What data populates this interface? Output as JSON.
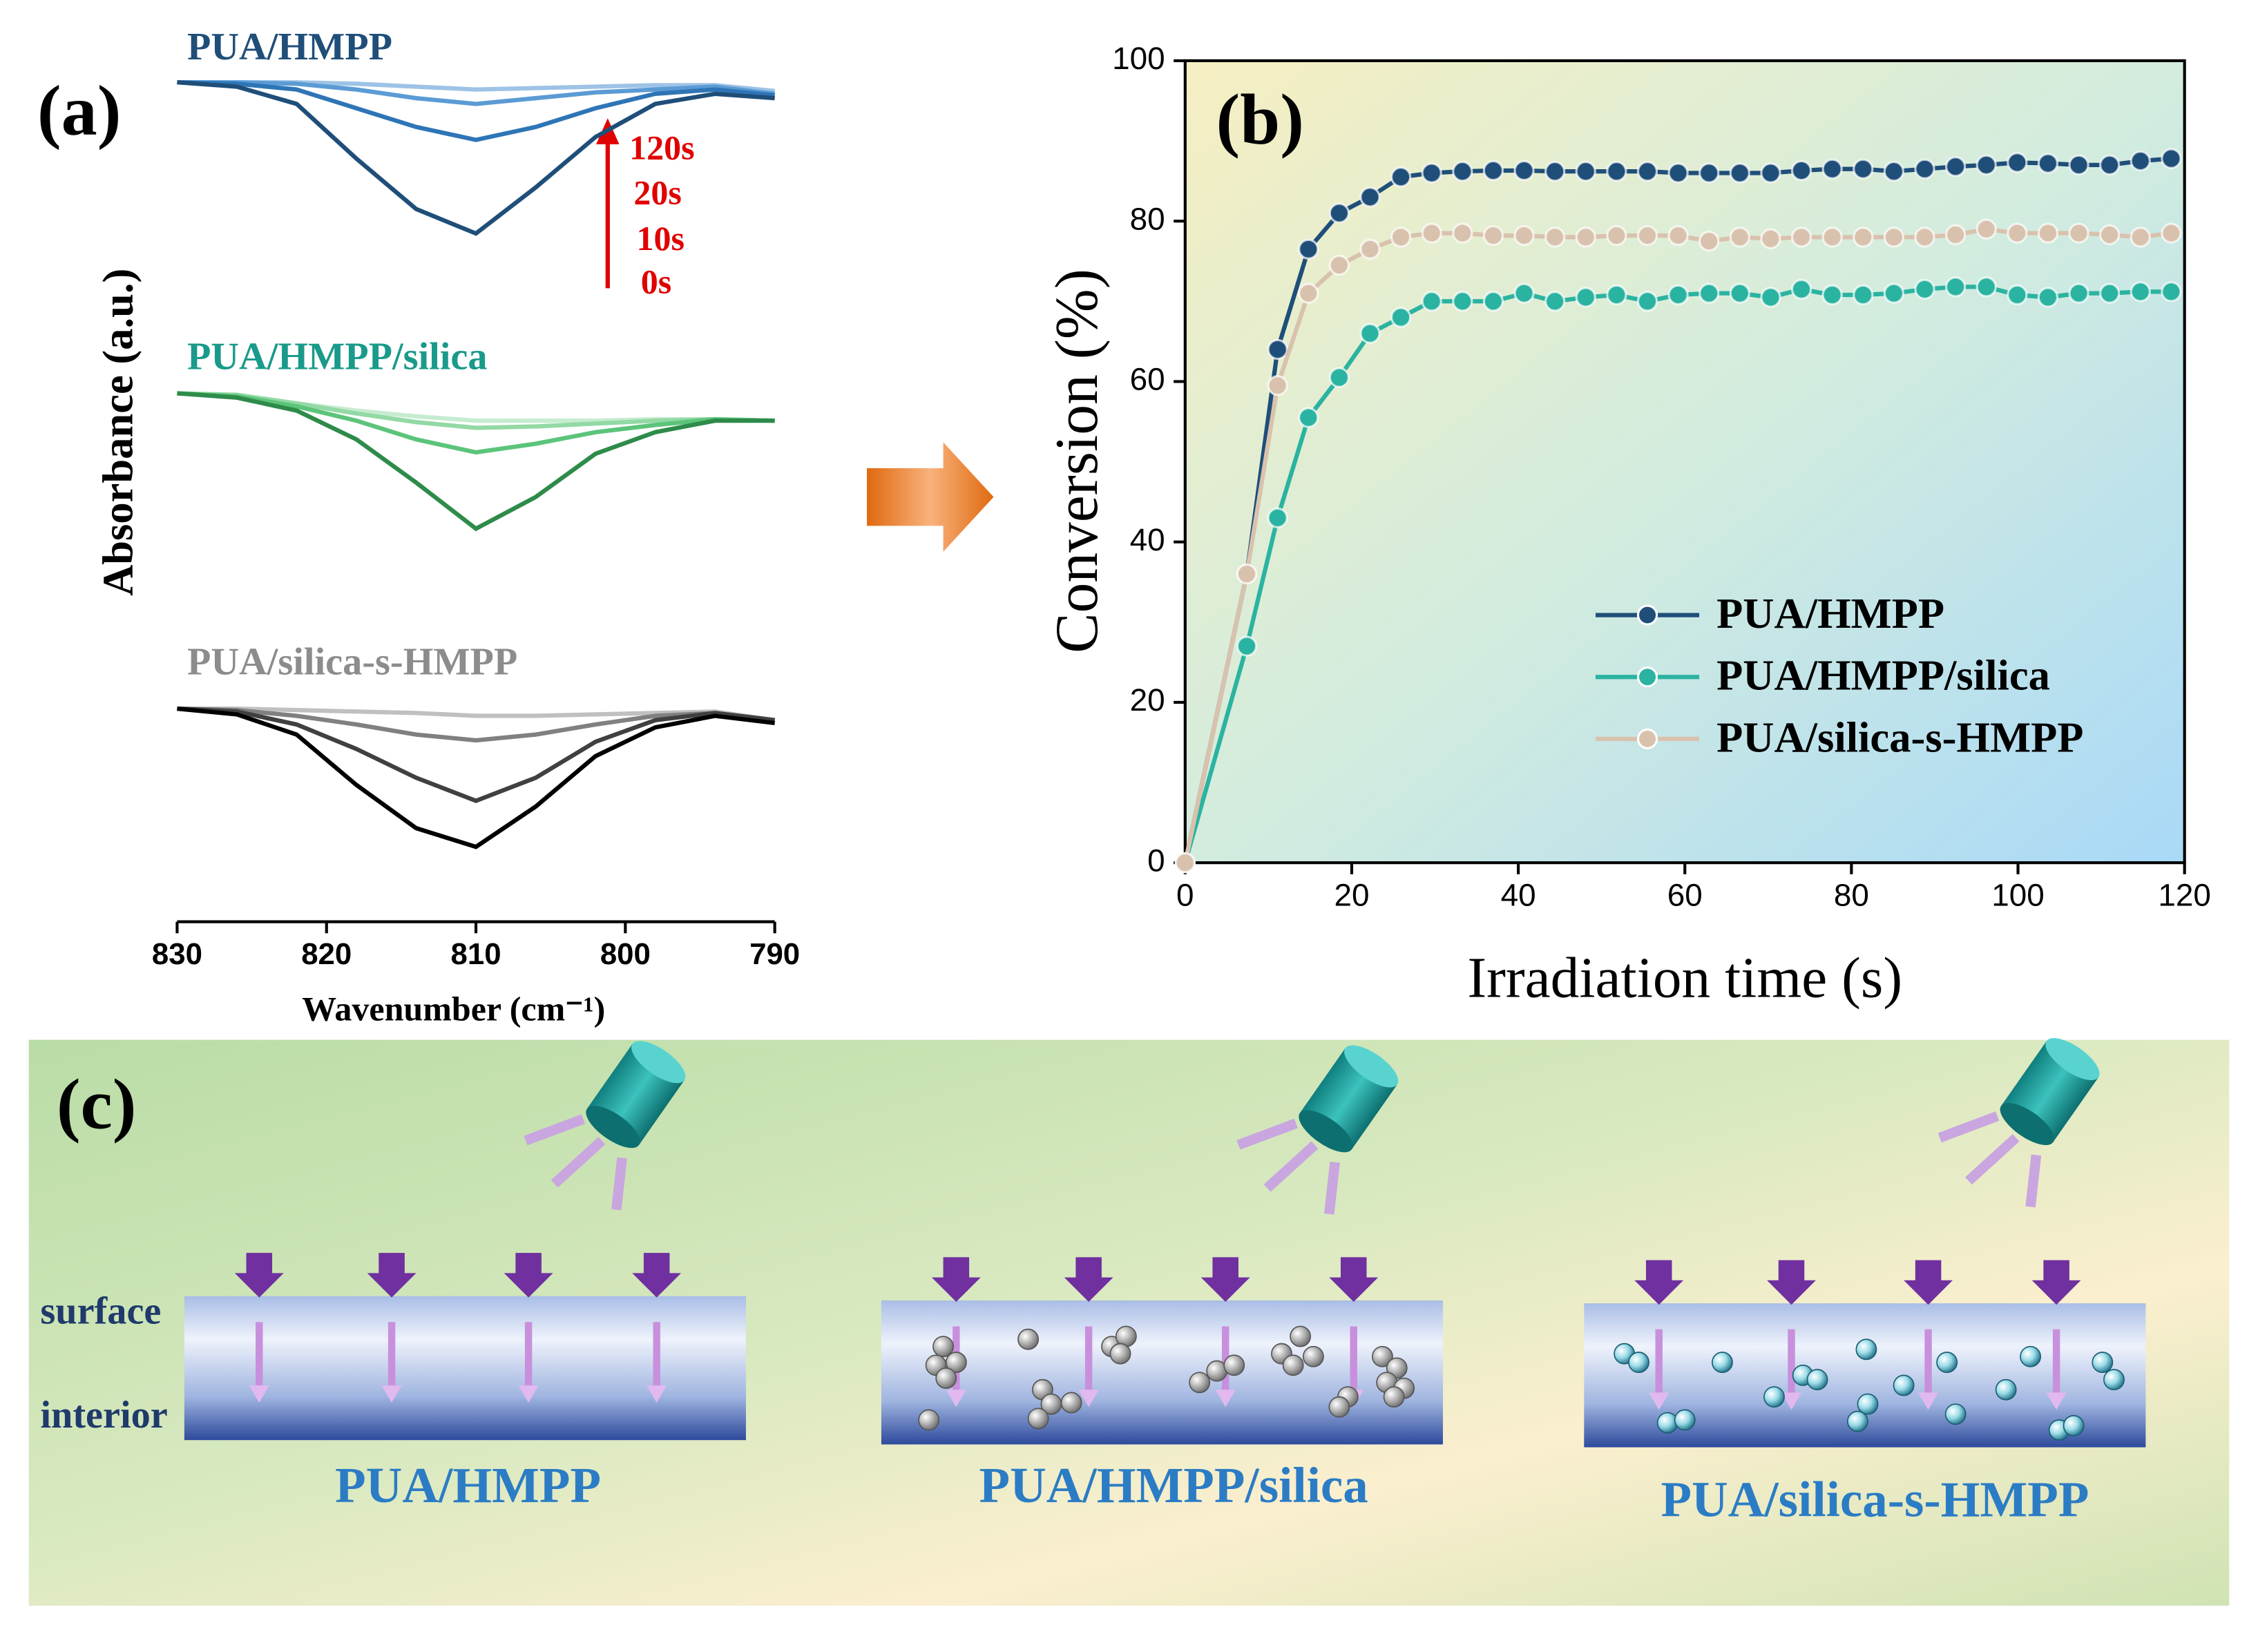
{
  "chart_data": [
    {
      "type": "line",
      "panel_label": "(a)",
      "xlabel": "Wavenumber (cm⁻¹)",
      "ylabel": "Absorbance (a.u.)",
      "x": [
        830,
        826,
        822,
        818,
        814,
        810,
        806,
        802,
        798,
        794,
        790
      ],
      "xlim": [
        830,
        790
      ],
      "xticks": [
        830,
        820,
        810,
        800,
        790
      ],
      "ylim": [
        0,
        600
      ],
      "time_labels": [
        "120s",
        "20s",
        "10s",
        "0s"
      ],
      "groups": [
        {
          "name": "PUA/HMPP",
          "color": "#1f4e79",
          "series": [
            {
              "color": "#1f4e79",
              "values": [
                583,
                580,
                568,
                530,
                495,
                478,
                510,
                545,
                568,
                575,
                572
              ]
            },
            {
              "color": "#2e75b6",
              "values": [
                583,
                582,
                578,
                565,
                552,
                543,
                552,
                565,
                575,
                578,
                574
              ]
            },
            {
              "color": "#5b9bd5",
              "values": [
                583,
                583,
                582,
                578,
                572,
                568,
                572,
                576,
                578,
                580,
                575
              ]
            },
            {
              "color": "#9dc3e6",
              "values": [
                583,
                583,
                583,
                582,
                580,
                578,
                579,
                580,
                581,
                581,
                577
              ]
            }
          ]
        },
        {
          "name": "PUA/HMPP/silica",
          "color": "#1a9a8a",
          "series": [
            {
              "color": "#2e8b4a",
              "values": [
                367,
                364,
                355,
                335,
                305,
                273,
                295,
                325,
                340,
                348,
                348
              ]
            },
            {
              "color": "#5cc47a",
              "values": [
                367,
                365,
                358,
                348,
                335,
                326,
                332,
                340,
                345,
                349,
                348
              ]
            },
            {
              "color": "#93d9a5",
              "values": [
                367,
                366,
                360,
                353,
                347,
                343,
                344,
                346,
                348,
                349,
                348
              ]
            },
            {
              "color": "#c6ecd0",
              "values": [
                367,
                365,
                360,
                355,
                351,
                348,
                348,
                348,
                349,
                349,
                348
              ]
            }
          ]
        },
        {
          "name": "PUA/silica-s-HMPP",
          "color": "#8c8c8c",
          "series": [
            {
              "color": "#000000",
              "values": [
                148,
                144,
                130,
                95,
                65,
                52,
                80,
                115,
                135,
                143,
                138
              ]
            },
            {
              "color": "#404040",
              "values": [
                148,
                146,
                137,
                120,
                100,
                84,
                100,
                125,
                140,
                145,
                140
              ]
            },
            {
              "color": "#808080",
              "values": [
                148,
                147,
                143,
                137,
                130,
                126,
                130,
                137,
                143,
                145,
                140
              ]
            },
            {
              "color": "#c0c0c0",
              "values": [
                148,
                148,
                147,
                146,
                145,
                143,
                143,
                144,
                145,
                146,
                140
              ]
            }
          ]
        }
      ]
    },
    {
      "type": "line",
      "panel_label": "(b)",
      "xlabel": "Irradiation time (s)",
      "ylabel": "Conversion (%)",
      "markers": true,
      "x": [
        0,
        7.4,
        11.1,
        14.8,
        18.5,
        22.2,
        25.9,
        29.6,
        33.3,
        37,
        40.7,
        44.4,
        48.1,
        51.8,
        55.5,
        59.2,
        62.9,
        66.6,
        70.3,
        74,
        77.7,
        81.4,
        85.1,
        88.8,
        92.5,
        96.2,
        99.9,
        103.6,
        107.3,
        111,
        114.7,
        118.4
      ],
      "xlim": [
        0,
        120
      ],
      "xticks": [
        0,
        20,
        40,
        60,
        80,
        100,
        120
      ],
      "ylim": [
        0,
        100
      ],
      "yticks": [
        0,
        20,
        40,
        60,
        80,
        100
      ],
      "series": [
        {
          "name": "PUA/HMPP",
          "color": "#1f4e79",
          "values": [
            0,
            36,
            64,
            76.5,
            81,
            83,
            85.5,
            86,
            86.2,
            86.3,
            86.3,
            86.2,
            86.2,
            86.2,
            86.2,
            86,
            86,
            86,
            86,
            86.3,
            86.5,
            86.5,
            86.2,
            86.5,
            86.8,
            87,
            87.3,
            87.2,
            87,
            87,
            87.5,
            87.8
          ]
        },
        {
          "name": "PUA/HMPP/silica",
          "color": "#2ab3a0",
          "values": [
            0,
            27,
            43,
            55.5,
            60.5,
            66,
            68,
            70,
            70,
            70,
            71,
            70,
            70.5,
            70.8,
            70,
            70.8,
            71,
            71,
            70.5,
            71.5,
            70.8,
            70.8,
            71,
            71.5,
            71.8,
            71.8,
            70.8,
            70.5,
            71,
            71,
            71.2,
            71.2
          ]
        },
        {
          "name": "PUA/silica-s-HMPP",
          "color": "#d9c2ad",
          "values": [
            0,
            36,
            59.5,
            71,
            74.5,
            76.5,
            78,
            78.5,
            78.5,
            78.2,
            78.2,
            78,
            78,
            78.2,
            78.2,
            78.2,
            77.5,
            78,
            77.8,
            78,
            78,
            78,
            78,
            78,
            78.3,
            79,
            78.5,
            78.5,
            78.5,
            78.3,
            78,
            78.5
          ]
        }
      ]
    }
  ],
  "diagram": {
    "panel_label": "(c)",
    "surface_label": "surface",
    "interior_label": "interior",
    "samples": [
      "PUA/HMPP",
      "PUA/HMPP/silica",
      "PUA/silica-s-HMPP"
    ]
  }
}
